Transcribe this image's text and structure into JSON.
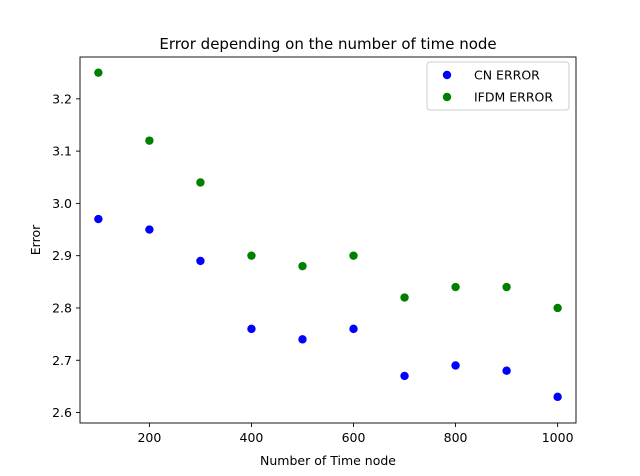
{
  "chart_data": {
    "type": "scatter",
    "title": "Error depending on the number of time node",
    "xlabel": "Number of Time node",
    "ylabel": "Error",
    "xlim": [
      64,
      1036
    ],
    "ylim": [
      2.58,
      3.28
    ],
    "xticks": [
      200,
      400,
      600,
      800,
      1000
    ],
    "yticks": [
      2.6,
      2.7,
      2.8,
      2.9,
      3.0,
      3.1,
      3.2
    ],
    "grid": false,
    "legend_position": "top-right",
    "series": [
      {
        "name": "CN ERROR",
        "color": "#0000ff",
        "x": [
          100,
          200,
          300,
          400,
          500,
          600,
          700,
          800,
          900,
          1000
        ],
        "y": [
          2.97,
          2.95,
          2.89,
          2.76,
          2.74,
          2.76,
          2.67,
          2.69,
          2.68,
          2.63
        ]
      },
      {
        "name": "IFDM ERROR",
        "color": "#008000",
        "x": [
          100,
          200,
          300,
          400,
          500,
          600,
          700,
          800,
          900,
          1000
        ],
        "y": [
          3.25,
          3.12,
          3.04,
          2.9,
          2.88,
          2.9,
          2.82,
          2.84,
          2.84,
          2.8
        ]
      }
    ]
  }
}
